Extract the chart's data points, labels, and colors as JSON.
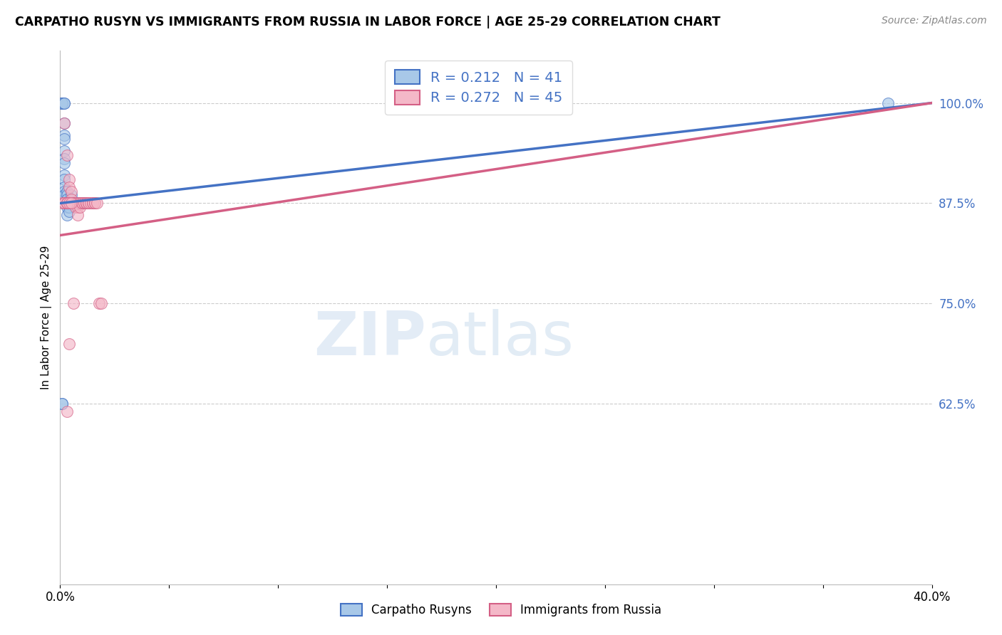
{
  "title": "CARPATHO RUSYN VS IMMIGRANTS FROM RUSSIA IN LABOR FORCE | AGE 25-29 CORRELATION CHART",
  "source": "Source: ZipAtlas.com",
  "ylabel": "In Labor Force | Age 25-29",
  "right_ytick_labels": [
    "100.0%",
    "87.5%",
    "75.0%",
    "62.5%"
  ],
  "right_ytick_values": [
    1.0,
    0.875,
    0.75,
    0.625
  ],
  "R_blue": 0.212,
  "N_blue": 41,
  "R_pink": 0.272,
  "N_pink": 45,
  "blue_color": "#a8c8e8",
  "pink_color": "#f4b8c8",
  "trend_blue": "#4472c4",
  "trend_pink": "#d45f85",
  "blue_scatter_x": [
    0.001,
    0.001,
    0.001,
    0.001,
    0.002,
    0.002,
    0.002,
    0.002,
    0.002,
    0.002,
    0.002,
    0.002,
    0.002,
    0.002,
    0.002,
    0.002,
    0.002,
    0.003,
    0.003,
    0.003,
    0.003,
    0.003,
    0.003,
    0.003,
    0.004,
    0.004,
    0.004,
    0.005,
    0.005,
    0.006,
    0.006,
    0.007,
    0.008,
    0.009,
    0.009,
    0.01,
    0.011,
    0.012,
    0.001,
    0.001,
    0.38
  ],
  "blue_scatter_y": [
    1.0,
    1.0,
    1.0,
    1.0,
    1.0,
    1.0,
    0.975,
    0.96,
    0.955,
    0.94,
    0.93,
    0.925,
    0.91,
    0.905,
    0.895,
    0.89,
    0.885,
    0.89,
    0.885,
    0.88,
    0.875,
    0.875,
    0.87,
    0.86,
    0.875,
    0.87,
    0.865,
    0.885,
    0.875,
    0.875,
    0.875,
    0.875,
    0.875,
    0.875,
    0.875,
    0.875,
    0.875,
    0.875,
    0.625,
    0.625,
    1.0
  ],
  "pink_scatter_x": [
    0.002,
    0.003,
    0.004,
    0.004,
    0.005,
    0.005,
    0.006,
    0.006,
    0.007,
    0.007,
    0.007,
    0.008,
    0.008,
    0.008,
    0.009,
    0.009,
    0.009,
    0.01,
    0.01,
    0.011,
    0.011,
    0.012,
    0.012,
    0.012,
    0.013,
    0.013,
    0.014,
    0.015,
    0.015,
    0.016,
    0.016,
    0.017,
    0.018,
    0.019,
    0.001,
    0.002,
    0.002,
    0.003,
    0.003,
    0.003,
    0.004,
    0.005,
    0.006,
    0.004,
    0.003
  ],
  "pink_scatter_y": [
    0.975,
    0.935,
    0.905,
    0.895,
    0.89,
    0.88,
    0.875,
    0.875,
    0.875,
    0.875,
    0.87,
    0.875,
    0.87,
    0.86,
    0.875,
    0.875,
    0.87,
    0.875,
    0.875,
    0.875,
    0.875,
    0.875,
    0.875,
    0.875,
    0.875,
    0.875,
    0.875,
    0.875,
    0.875,
    0.875,
    0.875,
    0.875,
    0.75,
    0.75,
    0.875,
    0.875,
    0.875,
    0.875,
    0.875,
    0.875,
    0.875,
    0.875,
    0.75,
    0.7,
    0.615
  ],
  "blue_trend_x": [
    0.0,
    0.4
  ],
  "blue_trend_y": [
    0.875,
    1.0
  ],
  "pink_trend_x": [
    0.0,
    0.4
  ],
  "pink_trend_y": [
    0.835,
    1.0
  ],
  "xmin": 0.0,
  "xmax": 0.4,
  "ymin": 0.4,
  "ymax": 1.065,
  "watermark_zip": "ZIP",
  "watermark_atlas": "atlas",
  "legend_label_blue": "Carpatho Rusyns",
  "legend_label_pink": "Immigrants from Russia"
}
